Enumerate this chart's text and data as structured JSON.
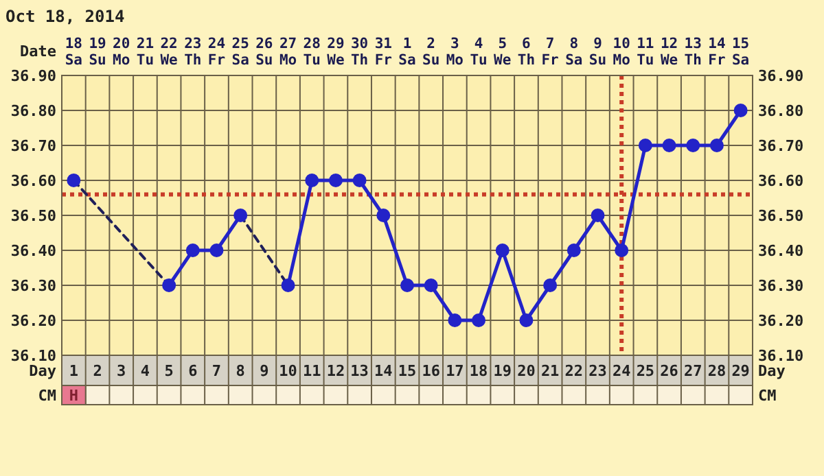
{
  "chart_data": {
    "type": "line",
    "title": "Oct 18, 2014",
    "xlabel": "Day",
    "x2label": "Date",
    "x": [
      1,
      2,
      3,
      4,
      5,
      6,
      7,
      8,
      9,
      10,
      11,
      12,
      13,
      14,
      15,
      16,
      17,
      18,
      19,
      20,
      21,
      22,
      23,
      24,
      25,
      26,
      27,
      28,
      29
    ],
    "series": [
      {
        "color": "#2323c8",
        "values": [
          36.6,
          null,
          null,
          null,
          36.3,
          36.4,
          36.4,
          36.5,
          null,
          36.3,
          36.6,
          36.6,
          36.6,
          36.5,
          36.3,
          36.3,
          36.2,
          36.2,
          36.4,
          36.2,
          36.3,
          36.4,
          36.5,
          36.4,
          36.7,
          36.7,
          36.7,
          36.7,
          36.8
        ]
      },
      {
        "color": "#20205a",
        "x": [
          1,
          5
        ],
        "values": [
          36.6,
          36.3
        ],
        "line_style": "dashed",
        "marker": "none"
      },
      {
        "color": "#20205a",
        "x": [
          8,
          10
        ],
        "values": [
          36.5,
          36.3
        ],
        "line_style": "dashed",
        "marker": "none"
      }
    ],
    "marker": "circle",
    "line_style": "solid",
    "xlim": [
      0.5,
      29.5
    ],
    "xticks": [
      1,
      2,
      3,
      4,
      5,
      6,
      7,
      8,
      9,
      10,
      11,
      12,
      13,
      14,
      15,
      16,
      17,
      18,
      19,
      20,
      21,
      22,
      23,
      24,
      25,
      26,
      27,
      28,
      29
    ],
    "x2lim": [
      "2014-10-17T12:00",
      "2014-11-15T12:00"
    ],
    "x2ticks": [
      {
        "value": "2014-10-18",
        "label": "18 Sa"
      },
      {
        "value": "2014-10-19",
        "label": "19 Su"
      },
      {
        "value": "2014-10-20",
        "label": "20 Mo"
      },
      {
        "value": "2014-10-21",
        "label": "21 Tu"
      },
      {
        "value": "2014-10-22",
        "label": "22 We"
      },
      {
        "value": "2014-10-23",
        "label": "23 Th"
      },
      {
        "value": "2014-10-24",
        "label": "24 Fr"
      },
      {
        "value": "2014-10-25",
        "label": "25 Sa"
      },
      {
        "value": "2014-10-26",
        "label": "26 Su"
      },
      {
        "value": "2014-10-27",
        "label": "27 Mo"
      },
      {
        "value": "2014-10-28",
        "label": "28 Tu"
      },
      {
        "value": "2014-10-29",
        "label": "29 We"
      },
      {
        "value": "2014-10-30",
        "label": "30 Th"
      },
      {
        "value": "2014-10-31",
        "label": "31 Fr"
      },
      {
        "value": "2014-11-01",
        "label": "1 Sa"
      },
      {
        "value": "2014-11-02",
        "label": "2 Su"
      },
      {
        "value": "2014-11-03",
        "label": "3 Mo"
      },
      {
        "value": "2014-11-04",
        "label": "4 Tu"
      },
      {
        "value": "2014-11-05",
        "label": "5 We"
      },
      {
        "value": "2014-11-06",
        "label": "6 Th"
      },
      {
        "value": "2014-11-07",
        "label": "7 Fr"
      },
      {
        "value": "2014-11-08",
        "label": "8 Sa"
      },
      {
        "value": "2014-11-09",
        "label": "9 Su"
      },
      {
        "value": "2014-11-10",
        "label": "10 Mo"
      },
      {
        "value": "2014-11-11",
        "label": "11 Tu"
      },
      {
        "value": "2014-11-12",
        "label": "12 We"
      },
      {
        "value": "2014-11-13",
        "label": "13 Th"
      },
      {
        "value": "2014-11-14",
        "label": "14 Fr"
      },
      {
        "value": "2014-11-15",
        "label": "15 Sa"
      }
    ],
    "ylim": [
      36.1,
      36.9
    ],
    "yticks": [
      {
        "value": 36.1,
        "label": "36.10"
      },
      {
        "value": 36.2,
        "label": "36.20"
      },
      {
        "value": 36.3,
        "label": "36.30"
      },
      {
        "value": 36.4,
        "label": "36.40"
      },
      {
        "value": 36.5,
        "label": "36.50"
      },
      {
        "value": 36.6,
        "label": "36.60"
      },
      {
        "value": 36.7,
        "label": "36.70"
      },
      {
        "value": 36.8,
        "label": "36.80"
      },
      {
        "value": 36.9,
        "label": "36.90"
      }
    ],
    "y2lim": [
      36.1,
      36.9
    ],
    "y2ticks": [
      {
        "value": 36.1,
        "label": "36.10"
      },
      {
        "value": 36.2,
        "label": "36.20"
      },
      {
        "value": 36.3,
        "label": "36.30"
      },
      {
        "value": 36.4,
        "label": "36.40"
      },
      {
        "value": 36.5,
        "label": "36.50"
      },
      {
        "value": 36.6,
        "label": "36.60"
      },
      {
        "value": 36.7,
        "label": "36.70"
      },
      {
        "value": 36.8,
        "label": "36.80"
      },
      {
        "value": 36.9,
        "label": "36.90"
      }
    ],
    "grid": true,
    "ref_lines": [
      {
        "axis": "y",
        "value": 36.56,
        "color": "#c83c28",
        "line_style": "dotted"
      },
      {
        "axis": "x",
        "value": 24,
        "color": "#c83c28",
        "line_style": "dotted"
      }
    ],
    "annotations": [
      "CM",
      "H"
    ]
  }
}
